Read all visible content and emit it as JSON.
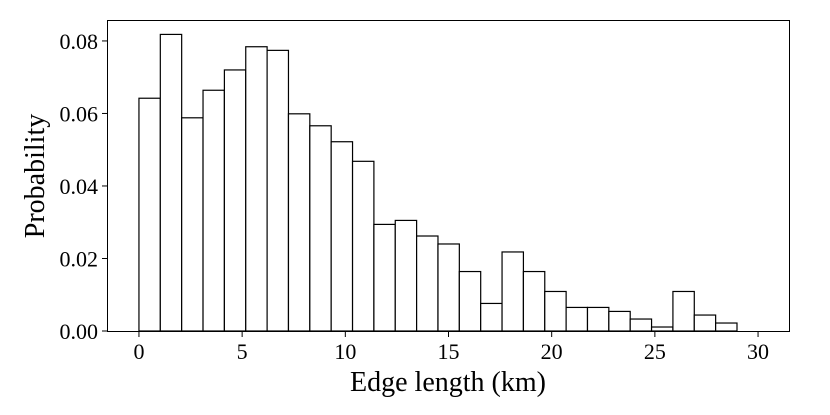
{
  "chart_data": {
    "type": "bar",
    "histogram": true,
    "xlabel": "Edge length (km)",
    "ylabel": "Probability",
    "xlim": [
      -1.5,
      31.5
    ],
    "ylim": [
      0,
      0.0855
    ],
    "xticks": [
      0,
      5,
      10,
      15,
      20,
      25,
      30
    ],
    "yticks": [
      0.0,
      0.02,
      0.04,
      0.06,
      0.08
    ],
    "ytick_labels": [
      "0.00",
      "0.02",
      "0.04",
      "0.06",
      "0.08"
    ],
    "grid": false,
    "bin_edges": [
      0,
      1.035,
      2.07,
      3.105,
      4.14,
      5.175,
      6.21,
      7.245,
      8.28,
      9.315,
      10.35,
      11.385,
      12.42,
      13.455,
      14.49,
      15.525,
      16.56,
      17.595,
      18.63,
      19.665,
      20.7,
      21.735,
      22.77,
      23.805,
      24.84,
      25.875,
      26.91,
      27.945,
      28.98
    ],
    "values": [
      0.0642,
      0.0818,
      0.0588,
      0.0664,
      0.072,
      0.0784,
      0.0774,
      0.0599,
      0.0566,
      0.0522,
      0.0468,
      0.0294,
      0.0305,
      0.0262,
      0.024,
      0.0164,
      0.0076,
      0.0218,
      0.0164,
      0.0109,
      0.0065,
      0.0065,
      0.0054,
      0.0033,
      0.0011,
      0.0109,
      0.0044,
      0.0022
    ],
    "style": {
      "bar_fill": "#ffffff",
      "bar_edge": "#000000",
      "background": "#ffffff"
    }
  }
}
